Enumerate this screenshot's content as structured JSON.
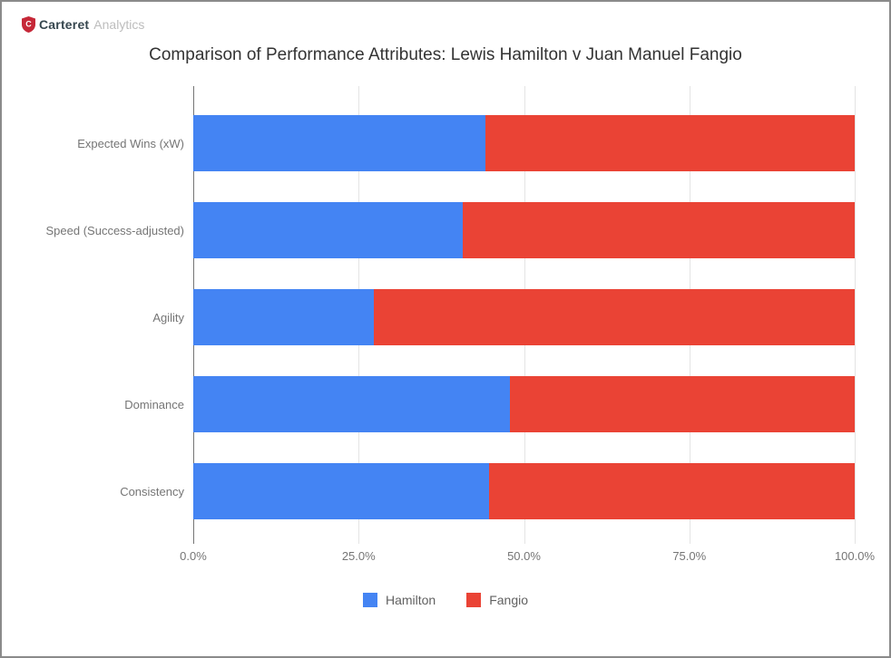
{
  "header": {
    "brand_primary": "Carteret",
    "brand_secondary": "Analytics"
  },
  "chart": {
    "title": "Comparison of Performance Attributes: Lewis Hamilton v Juan Manuel Fangio"
  },
  "chart_data": {
    "type": "bar",
    "orientation": "horizontal",
    "stacked": true,
    "title": "Comparison of Performance Attributes: Lewis Hamilton v Juan Manuel Fangio",
    "categories": [
      "Expected Wins (xW)",
      "Speed (Success-adjusted)",
      "Agility",
      "Dominance",
      "Consistency"
    ],
    "series": [
      {
        "name": "Hamilton",
        "color": "#4484F3",
        "values": [
          44.2,
          40.7,
          27.3,
          47.9,
          44.7
        ]
      },
      {
        "name": "Fangio",
        "color": "#EA4335",
        "values": [
          55.8,
          59.3,
          72.7,
          52.1,
          55.3
        ]
      }
    ],
    "xlabel": "",
    "ylabel": "",
    "xlim": [
      0,
      100
    ],
    "x_tick_values": [
      0,
      25,
      50,
      75,
      100
    ],
    "x_ticks": [
      "0.0%",
      "25.0%",
      "50.0%",
      "75.0%",
      "100.0%"
    ],
    "grid": true,
    "legend_position": "bottom",
    "units": "percent share"
  },
  "colors": {
    "hamilton_blue": "#4484F3",
    "fangio_red": "#EA4335",
    "gridline": "#e4e4e4",
    "axis_line": "#757575",
    "title_text": "#333333",
    "label_text": "#757575",
    "brand_shield_red": "#C62838"
  }
}
